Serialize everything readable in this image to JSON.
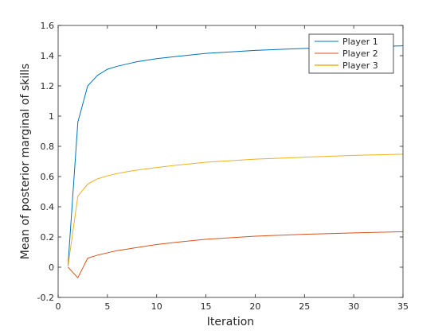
{
  "chart_data": {
    "type": "line",
    "title": "",
    "xlabel": "Iteration",
    "ylabel": "Mean of posterior marginal of skills",
    "xlim": [
      0,
      35
    ],
    "ylim": [
      -0.2,
      1.6
    ],
    "xticks": [
      0,
      5,
      10,
      15,
      20,
      25,
      30,
      35
    ],
    "yticks": [
      -0.2,
      0,
      0.2,
      0.4,
      0.6,
      0.8,
      1,
      1.2,
      1.4,
      1.6
    ],
    "xtick_labels": [
      "0",
      "5",
      "10",
      "15",
      "20",
      "25",
      "30",
      "35"
    ],
    "ytick_labels": [
      "-0.2",
      "0",
      "0.2",
      "0.4",
      "0.6",
      "0.8",
      "1",
      "1.2",
      "1.4",
      "1.6"
    ],
    "grid": false,
    "legend_position": "top-right",
    "x": [
      1,
      2,
      3,
      4,
      5,
      6,
      7,
      8,
      10,
      12,
      15,
      20,
      25,
      30,
      35
    ],
    "series": [
      {
        "name": "Player 1",
        "color": "#0072bd",
        "values": [
          0.01,
          0.96,
          1.2,
          1.27,
          1.31,
          1.33,
          1.345,
          1.36,
          1.38,
          1.395,
          1.415,
          1.435,
          1.448,
          1.457,
          1.465
        ]
      },
      {
        "name": "Player 2",
        "color": "#d95319",
        "values": [
          0.0,
          -0.07,
          0.06,
          0.08,
          0.095,
          0.11,
          0.12,
          0.13,
          0.15,
          0.165,
          0.185,
          0.205,
          0.218,
          0.227,
          0.235
        ]
      },
      {
        "name": "Player 3",
        "color": "#edb120",
        "values": [
          0.005,
          0.47,
          0.55,
          0.585,
          0.605,
          0.62,
          0.632,
          0.643,
          0.66,
          0.675,
          0.695,
          0.715,
          0.728,
          0.74,
          0.748
        ]
      }
    ]
  }
}
